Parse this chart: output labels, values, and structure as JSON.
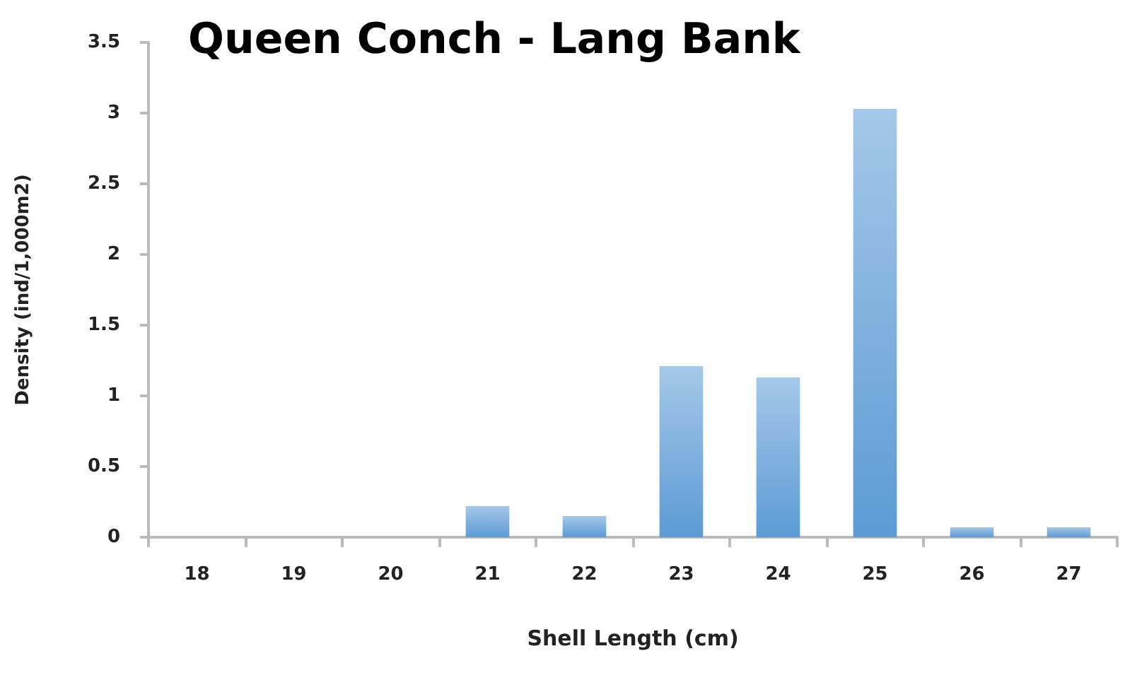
{
  "chart_data": {
    "type": "bar",
    "title": "Queen Conch - Lang Bank",
    "xlabel": "Shell Length (cm)",
    "ylabel": "Density (ind/1,000m2)",
    "categories": [
      "18",
      "19",
      "20",
      "21",
      "22",
      "23",
      "24",
      "25",
      "26",
      "27"
    ],
    "values": [
      0,
      0,
      0,
      0.22,
      0.15,
      1.21,
      1.13,
      3.03,
      0.07,
      0.07
    ],
    "color": "#5b9bd5",
    "ylim": [
      0,
      3.5
    ],
    "yticks": [
      0,
      0.5,
      1,
      1.5,
      2,
      2.5,
      3,
      3.5
    ],
    "grid": false
  }
}
